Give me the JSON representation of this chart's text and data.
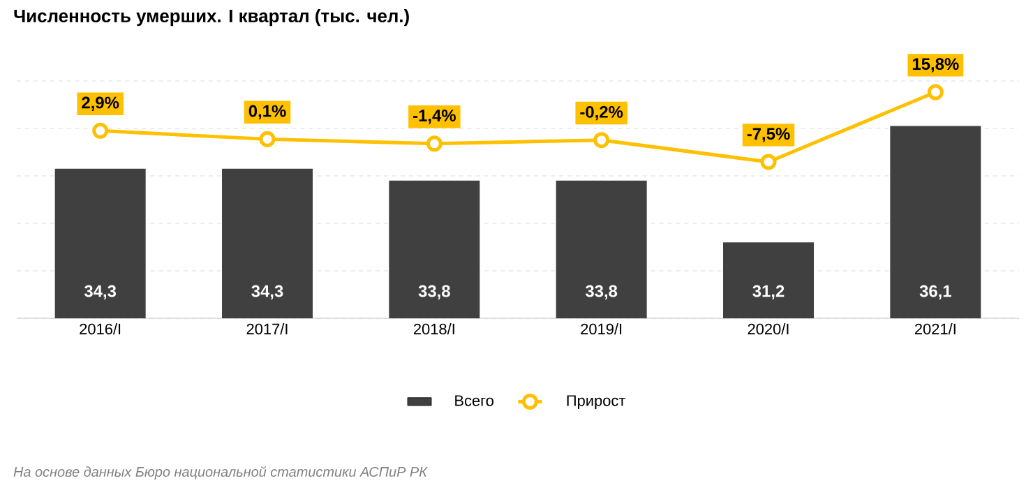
{
  "chart_data": {
    "type": "bar",
    "title": "Численность умерших. I квартал (тыс. чел.)",
    "categories": [
      "2016/I",
      "2017/I",
      "2018/I",
      "2019/I",
      "2020/I",
      "2021/I"
    ],
    "series": [
      {
        "name": "Всего",
        "color": "#404040",
        "values": [
          34.3,
          34.3,
          33.8,
          33.8,
          31.2,
          36.1
        ],
        "value_labels": [
          "34,3",
          "34,3",
          "33,8",
          "33,8",
          "31,2",
          "36,1"
        ]
      },
      {
        "name": "Прирост",
        "type": "line",
        "axis": "y2",
        "color": "#ffc000",
        "values": [
          2.9,
          0.1,
          -1.4,
          -0.2,
          -7.5,
          15.8
        ],
        "value_labels": [
          "2,9%",
          "0,1%",
          "-1,4%",
          "-0,2%",
          "-7,5%",
          "15,8%"
        ]
      }
    ],
    "ylim": [
      28,
      38
    ],
    "yticks": [
      {
        "value": 28,
        "label": null
      },
      {
        "value": 30,
        "label": null
      },
      {
        "value": 32,
        "label": null
      },
      {
        "value": 34,
        "label": null
      },
      {
        "value": 36,
        "label": null
      },
      {
        "value": 38,
        "label": null
      }
    ],
    "grid": "y",
    "legend": "bottom",
    "tick_labels": "x",
    "marker": "circle",
    "annotations": [
      "На основе данных Бюро национальной статистики АСПиР РК"
    ]
  }
}
